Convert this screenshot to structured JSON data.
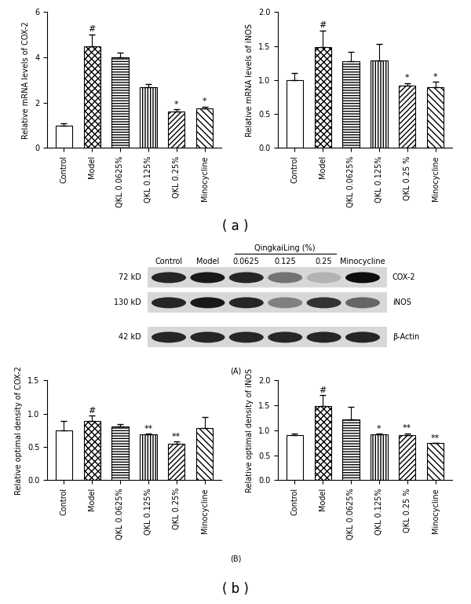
{
  "chart_data": [
    {
      "type": "bar",
      "ylabel": "Relative mRNA levels of COX-2",
      "color": "#000000",
      "categories": [
        "Control",
        "Model",
        "QKL 0.0625%",
        "QKL 0.125%",
        "QKL 0.25%",
        "Minocycline"
      ],
      "values": [
        1.0,
        4.5,
        4.0,
        2.7,
        1.6,
        1.75
      ],
      "errors": [
        0.08,
        0.5,
        0.2,
        0.12,
        0.1,
        0.06
      ],
      "significance": [
        null,
        "#",
        null,
        null,
        "*",
        "*"
      ],
      "ylim": [
        0,
        6
      ],
      "yticks": [
        0,
        2,
        4,
        6
      ]
    },
    {
      "type": "bar",
      "ylabel": "Relative mRNA levels of iNOS",
      "color": "#000000",
      "categories": [
        "Control",
        "Model",
        "QKL 0.0625%",
        "QKL 0.125%",
        "QKL 0.25 %",
        "Minocycline"
      ],
      "values": [
        1.0,
        1.48,
        1.28,
        1.29,
        0.92,
        0.89
      ],
      "errors": [
        0.1,
        0.25,
        0.13,
        0.24,
        0.03,
        0.08
      ],
      "significance": [
        null,
        "#",
        null,
        null,
        "*",
        "*"
      ],
      "ylim": [
        0,
        2.0
      ],
      "yticks": [
        {
          "value": 0,
          "label": "0.0"
        },
        0.5,
        {
          "value": 1,
          "label": "1.0"
        },
        1.5,
        {
          "value": 2,
          "label": "2.0"
        }
      ]
    },
    {
      "type": "bar",
      "ylabel": "Relative optimal density of COX-2",
      "color": "#000000",
      "categories": [
        "Control",
        "Model",
        "QKL 0.0625%",
        "QKL 0.125%",
        "QKL 0.25%",
        "Minocycline"
      ],
      "values": [
        0.75,
        0.89,
        0.81,
        0.69,
        0.55,
        0.79
      ],
      "errors": [
        0.14,
        0.08,
        0.03,
        0.01,
        0.03,
        0.16
      ],
      "significance": [
        null,
        "#",
        null,
        "**",
        "**",
        null
      ],
      "ylim": [
        0,
        1.5
      ],
      "yticks": [
        {
          "value": 0,
          "label": "0.0"
        },
        0.5,
        {
          "value": 1,
          "label": "1.0"
        },
        1.5
      ]
    },
    {
      "type": "bar",
      "ylabel": "Relative optimal density of iNOS",
      "color": "#000000",
      "categories": [
        "Control",
        "Model",
        "QKL 0.0625%",
        "QKL 0.125%",
        "QKL 0.25 %",
        "Minocycline"
      ],
      "values": [
        0.9,
        1.48,
        1.22,
        0.92,
        0.91,
        0.74
      ],
      "errors": [
        0.03,
        0.23,
        0.25,
        0.01,
        0.03,
        0.01
      ],
      "significance": [
        null,
        "#",
        null,
        "*",
        "**",
        "**"
      ],
      "ylim": [
        0,
        2.0
      ],
      "yticks": [
        {
          "value": 0,
          "label": "0.0"
        },
        0.5,
        {
          "value": 1,
          "label": "1.0"
        },
        1.5,
        {
          "value": 2,
          "label": "2.0"
        }
      ]
    }
  ],
  "panel_labels": {
    "a": "( a )",
    "A": "(A)",
    "B": "(B)",
    "b": "( b )"
  },
  "blot": {
    "group_header": "QingkaiLing (%)",
    "lanes": [
      "Control",
      "Model",
      "0.0625",
      "0.125",
      "0.25",
      "Minocycline"
    ],
    "rows": [
      {
        "size": "72 kD",
        "name": "COX-2",
        "intensity": [
          0.85,
          0.9,
          0.85,
          0.55,
          0.3,
          0.95
        ]
      },
      {
        "size": "130 kD",
        "name": "iNOS",
        "intensity": [
          0.85,
          0.9,
          0.85,
          0.5,
          0.8,
          0.6
        ]
      },
      {
        "size": "42 kD",
        "name": "β-Actin",
        "intensity": [
          0.85,
          0.85,
          0.85,
          0.85,
          0.85,
          0.85
        ]
      }
    ]
  }
}
